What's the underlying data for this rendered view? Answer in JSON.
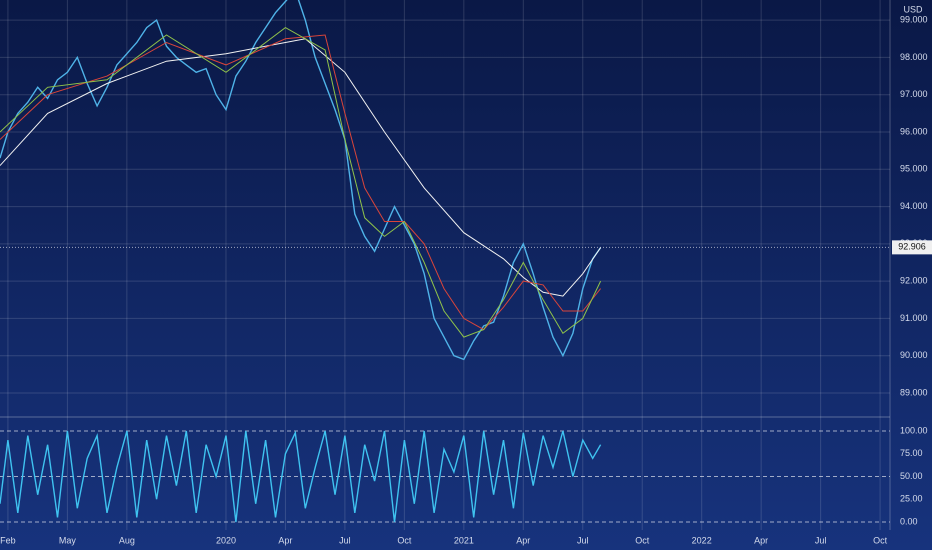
{
  "chart_data": [
    {
      "type": "line",
      "currency": "USD",
      "last_price": 92.906,
      "xlim": [
        0.6,
        45.5
      ],
      "xticks": [
        {
          "value": 1,
          "label": "Feb"
        },
        {
          "value": 4,
          "label": "May"
        },
        {
          "value": 7,
          "label": "Aug"
        },
        {
          "value": 12,
          "label": "2020"
        },
        {
          "value": 15,
          "label": "Apr"
        },
        {
          "value": 18,
          "label": "Jul"
        },
        {
          "value": 21,
          "label": "Oct"
        },
        {
          "value": 24,
          "label": "2021"
        },
        {
          "value": 27,
          "label": "Apr"
        },
        {
          "value": 30,
          "label": "Jul"
        },
        {
          "value": 33,
          "label": "Oct"
        },
        {
          "value": 36,
          "label": "2022"
        },
        {
          "value": 39,
          "label": "Apr"
        },
        {
          "value": 42,
          "label": "Jul"
        },
        {
          "value": 45,
          "label": "Oct"
        }
      ],
      "ylim": [
        88.41,
        99.54
      ],
      "yticks": [
        {
          "value": 89,
          "label": "89.000"
        },
        {
          "value": 90,
          "label": "90.000"
        },
        {
          "value": 91,
          "label": "91.000"
        },
        {
          "value": 92,
          "label": "92.000"
        },
        {
          "value": 93,
          "label": "93.000"
        },
        {
          "value": 94,
          "label": "94.000"
        },
        {
          "value": 95,
          "label": "95.000"
        },
        {
          "value": 96,
          "label": "96.000"
        },
        {
          "value": 97,
          "label": "97.000"
        },
        {
          "value": 98,
          "label": "98.000"
        },
        {
          "value": 99,
          "label": "99.000"
        }
      ],
      "grid": true,
      "series": [
        {
          "color": "#4fb3e8",
          "x": [
            0.6,
            1,
            1.5,
            2,
            2.5,
            3,
            3.5,
            4,
            4.5,
            5,
            5.5,
            6,
            6.5,
            7,
            7.5,
            8,
            8.5,
            9,
            9.5,
            10,
            10.5,
            11,
            11.5,
            12,
            12.5,
            13,
            13.5,
            14,
            14.5,
            15,
            15.5,
            16,
            16.5,
            17,
            17.5,
            18,
            18.5,
            19,
            19.5,
            20,
            20.5,
            21,
            21.5,
            22,
            22.5,
            23,
            23.5,
            24,
            24.5,
            25,
            25.5,
            26,
            26.5,
            27,
            27.5,
            28,
            28.5,
            29,
            29.5,
            30,
            30.5,
            30.9
          ],
          "values": [
            95.3,
            96.0,
            96.5,
            96.8,
            97.2,
            96.9,
            97.4,
            97.6,
            98.0,
            97.3,
            96.7,
            97.2,
            97.8,
            98.1,
            98.4,
            98.8,
            99.0,
            98.3,
            98.0,
            97.8,
            97.6,
            97.7,
            97.0,
            96.6,
            97.5,
            97.9,
            98.4,
            98.8,
            99.2,
            99.5,
            99.8,
            99.0,
            98.0,
            97.3,
            96.6,
            95.8,
            93.8,
            93.2,
            92.8,
            93.4,
            94.0,
            93.5,
            93.0,
            92.2,
            91.0,
            90.5,
            90.0,
            89.9,
            90.4,
            90.8,
            90.9,
            91.6,
            92.5,
            93.0,
            92.2,
            91.3,
            90.5,
            90.0,
            90.6,
            91.8,
            92.6,
            92.9
          ]
        },
        {
          "color": "#f2f2f2",
          "x": [
            0.6,
            3,
            6,
            9,
            12,
            15,
            16,
            18,
            20,
            22,
            24,
            26,
            27,
            28,
            29,
            30,
            30.9
          ],
          "values": [
            95.1,
            96.5,
            97.3,
            97.9,
            98.1,
            98.4,
            98.5,
            97.6,
            96.0,
            94.5,
            93.3,
            92.6,
            92.1,
            91.7,
            91.6,
            92.2,
            92.9
          ]
        },
        {
          "color": "#d9453a",
          "x": [
            0.6,
            3,
            6,
            9,
            12,
            15,
            17,
            18,
            19,
            20,
            21,
            22,
            23,
            24,
            25,
            26,
            27,
            28,
            29,
            30,
            30.9
          ],
          "values": [
            95.8,
            97.0,
            97.5,
            98.4,
            97.8,
            98.5,
            98.6,
            96.5,
            94.5,
            93.6,
            93.6,
            93.0,
            91.8,
            91.0,
            90.7,
            91.3,
            92.0,
            91.9,
            91.2,
            91.2,
            91.8
          ]
        },
        {
          "color": "#8fc24a",
          "x": [
            0.6,
            3,
            6,
            9,
            12,
            15,
            17,
            18,
            19,
            20,
            21,
            22,
            23,
            24,
            25,
            26,
            27,
            28,
            29,
            30,
            30.9
          ],
          "values": [
            96.0,
            97.2,
            97.4,
            98.6,
            97.6,
            98.8,
            98.2,
            95.8,
            93.7,
            93.2,
            93.6,
            92.5,
            91.2,
            90.5,
            90.7,
            91.5,
            92.5,
            91.5,
            90.6,
            91.0,
            92.0
          ]
        }
      ]
    },
    {
      "type": "line",
      "ylim": [
        -8.8,
        114.3
      ],
      "yticks": [
        {
          "value": 0,
          "label": "0.00"
        },
        {
          "value": 25,
          "label": "25.00"
        },
        {
          "value": 50,
          "label": "50.00"
        },
        {
          "value": 75,
          "label": "75.00"
        },
        {
          "value": 100,
          "label": "100.00"
        }
      ],
      "dashed_levels": [
        0,
        50,
        100
      ],
      "series": [
        {
          "color": "#3fc3f0",
          "x": [
            0.6,
            1,
            1.5,
            2,
            2.5,
            3,
            3.5,
            4,
            4.5,
            5,
            5.5,
            6,
            6.5,
            7,
            7.5,
            8,
            8.5,
            9,
            9.5,
            10,
            10.5,
            11,
            11.5,
            12,
            12.5,
            13,
            13.5,
            14,
            14.5,
            15,
            15.5,
            16,
            16.5,
            17,
            17.5,
            18,
            18.5,
            19,
            19.5,
            20,
            20.5,
            21,
            21.5,
            22,
            22.5,
            23,
            23.5,
            24,
            24.5,
            25,
            25.5,
            26,
            26.5,
            27,
            27.5,
            28,
            28.5,
            29,
            29.5,
            30,
            30.5,
            30.9
          ],
          "values": [
            20,
            90,
            10,
            95,
            30,
            85,
            5,
            100,
            15,
            70,
            95,
            10,
            60,
            100,
            5,
            90,
            25,
            95,
            40,
            100,
            10,
            85,
            50,
            95,
            0,
            100,
            20,
            90,
            5,
            75,
            98,
            15,
            60,
            100,
            30,
            95,
            10,
            85,
            45,
            100,
            0,
            90,
            20,
            100,
            10,
            80,
            55,
            95,
            5,
            100,
            30,
            90,
            15,
            98,
            40,
            95,
            60,
            100,
            50,
            90,
            70,
            85
          ]
        }
      ]
    }
  ]
}
